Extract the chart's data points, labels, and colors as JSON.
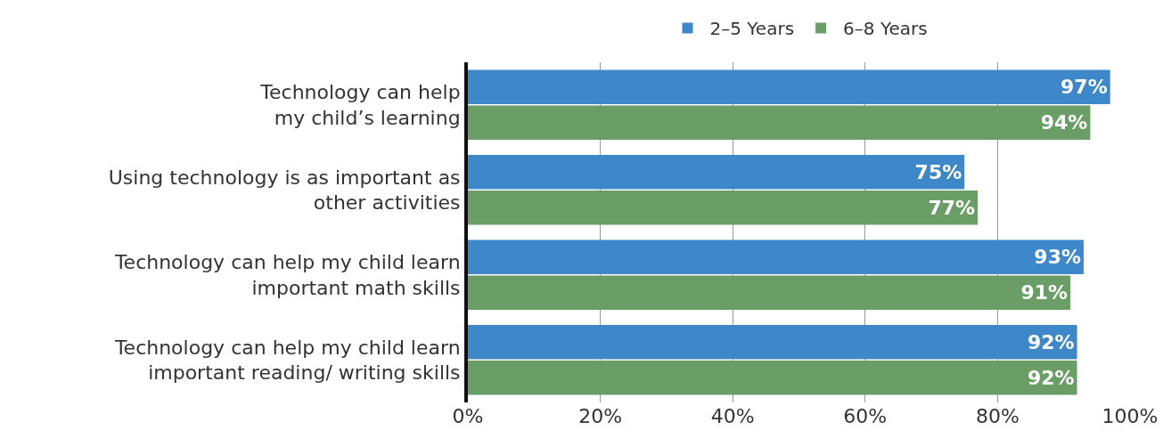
{
  "chart_data": {
    "type": "bar",
    "orientation": "horizontal",
    "categories": [
      "Technology can help\nmy child’s learning",
      "Using technology is as important as\nother activities",
      "Technology can help my child learn\nimportant math skills",
      "Technology can help my child learn\nimportant reading/ writing skills"
    ],
    "series": [
      {
        "name": "2–5 Years",
        "color": "#3e87c8",
        "values": [
          97,
          75,
          93,
          92
        ],
        "value_labels": [
          "97%",
          "75%",
          "93%",
          "92%"
        ]
      },
      {
        "name": "6–8 Years",
        "color": "#6a9e66",
        "values": [
          94,
          77,
          91,
          92
        ],
        "value_labels": [
          "94%",
          "77%",
          "91%",
          "92%"
        ]
      }
    ],
    "xlim": [
      0,
      100
    ],
    "xticks": [
      {
        "value": 0,
        "label": "0%"
      },
      {
        "value": 20,
        "label": "20%"
      },
      {
        "value": 40,
        "label": "40%"
      },
      {
        "value": 60,
        "label": "60%"
      },
      {
        "value": 80,
        "label": "80%"
      },
      {
        "value": 100,
        "label": "100%"
      }
    ],
    "grid": "x",
    "legend": "top"
  }
}
